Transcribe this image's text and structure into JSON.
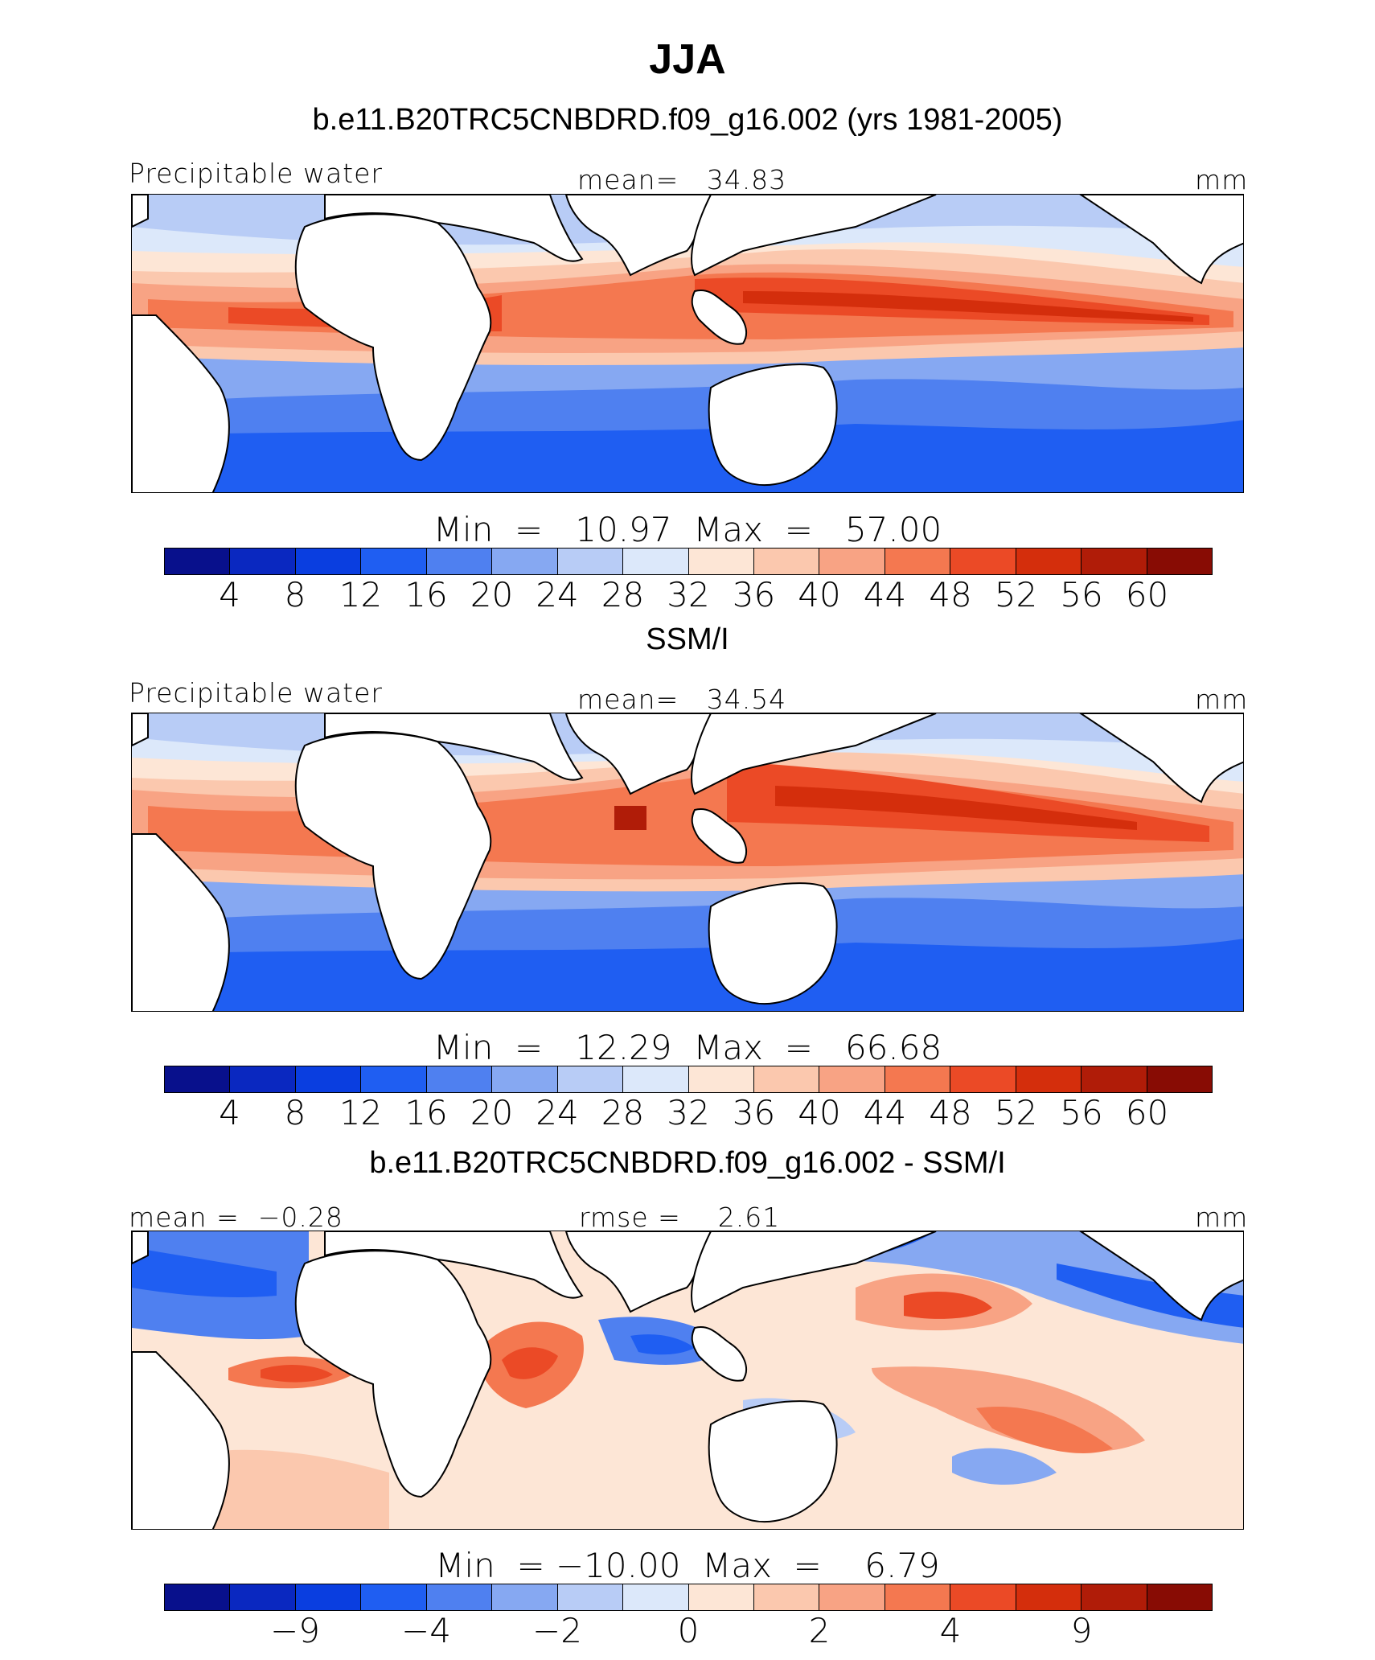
{
  "title": "JJA",
  "colors": [
    "#08108c",
    "#0a28c0",
    "#0a3ee0",
    "#1f5ef2",
    "#4f80f0",
    "#86a8f2",
    "#b8ccf6",
    "#dce8fa",
    "#fde6d6",
    "#fbc8ae",
    "#f8a384",
    "#f47850",
    "#eb4a26",
    "#d42e0c",
    "#b01c08",
    "#880c04"
  ],
  "colorbar_levels": [
    "4",
    "8",
    "12",
    "16",
    "20",
    "24",
    "28",
    "32",
    "36",
    "40",
    "44",
    "48",
    "52",
    "56",
    "60"
  ],
  "panels": [
    {
      "subtitle": "b.e11.B20TRC5CNBDRD.f09_g16.002 (yrs 1981-2005)",
      "left_label": "Precipitable water",
      "center_label": "mean=   34.83",
      "right_label": "mm",
      "minmax": "Min  =   10.97  Max  =   57.00",
      "ticks": [
        "4",
        "8",
        "12",
        "16",
        "20",
        "24",
        "28",
        "32",
        "36",
        "40",
        "44",
        "48",
        "52",
        "56",
        "60"
      ]
    },
    {
      "subtitle": "SSM/I",
      "left_label": "Precipitable water",
      "center_label": "mean=   34.54",
      "right_label": "mm",
      "minmax": "Min  =   12.29  Max  =   66.68",
      "ticks": [
        "4",
        "8",
        "12",
        "16",
        "20",
        "24",
        "28",
        "32",
        "36",
        "40",
        "44",
        "48",
        "52",
        "56",
        "60"
      ]
    },
    {
      "subtitle": "b.e11.B20TRC5CNBDRD.f09_g16.002 - SSM/I",
      "left_label": "mean =  −0.28",
      "center_label": "rmse =    2.61",
      "right_label": "mm",
      "minmax": "Min  = −10.00  Max  =    6.79",
      "ticks": [
        "−9",
        "−4",
        "−2",
        "0",
        "2",
        "4",
        "9"
      ]
    }
  ]
}
